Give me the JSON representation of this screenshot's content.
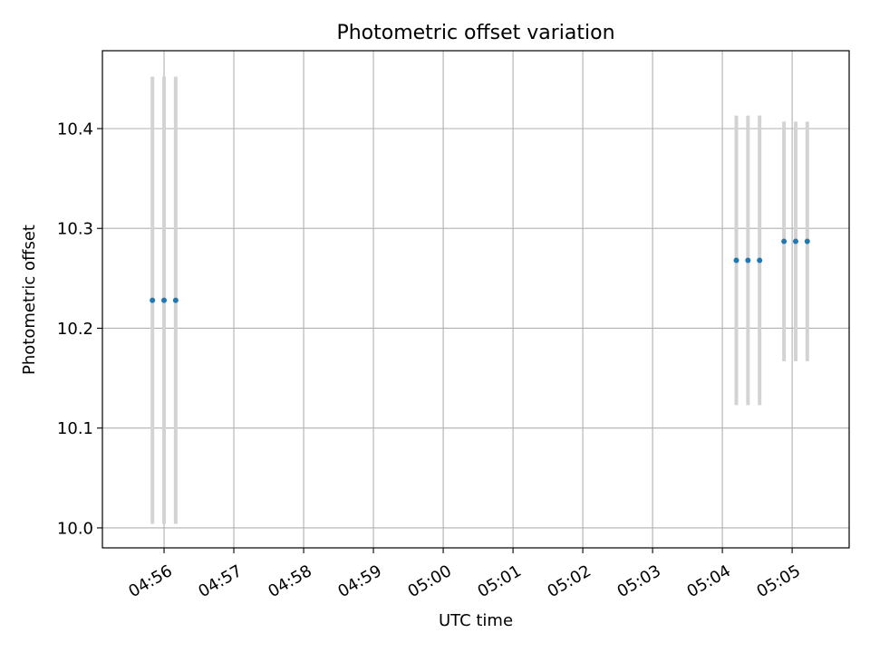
{
  "chart_data": {
    "type": "scatter",
    "title": "Photometric offset variation",
    "xlabel": "UTC time",
    "ylabel": "Photometric offset",
    "x_unit": "HH:MM:SS",
    "xlim": [
      "04:55:07",
      "05:05:49"
    ],
    "ylim": [
      9.98,
      10.478
    ],
    "x_ticks": [
      "04:56",
      "04:57",
      "04:58",
      "04:59",
      "05:00",
      "05:01",
      "05:02",
      "05:03",
      "05:04",
      "05:05"
    ],
    "y_ticks": [
      "10.0",
      "10.1",
      "10.2",
      "10.3",
      "10.4"
    ],
    "grid": true,
    "colors": {
      "point": "#1f77b4",
      "errorbar": "#d3d3d3",
      "grid": "#b0b0b0"
    },
    "series": [
      {
        "points": [
          {
            "x": "04:55:50",
            "y": 10.228,
            "yerr": 0.224
          },
          {
            "x": "04:56:00",
            "y": 10.228,
            "yerr": 0.224
          },
          {
            "x": "04:56:10",
            "y": 10.228,
            "yerr": 0.224
          },
          {
            "x": "05:04:12",
            "y": 10.268,
            "yerr": 0.145
          },
          {
            "x": "05:04:22",
            "y": 10.268,
            "yerr": 0.145
          },
          {
            "x": "05:04:32",
            "y": 10.268,
            "yerr": 0.145
          },
          {
            "x": "05:04:53",
            "y": 10.287,
            "yerr": 0.12
          },
          {
            "x": "05:05:03",
            "y": 10.287,
            "yerr": 0.12
          },
          {
            "x": "05:05:13",
            "y": 10.287,
            "yerr": 0.12
          }
        ]
      }
    ]
  }
}
